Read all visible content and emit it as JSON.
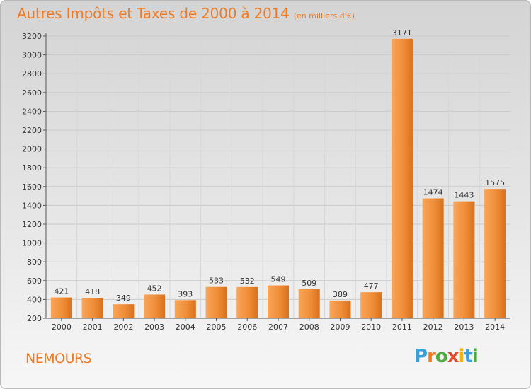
{
  "chart_data": {
    "type": "bar",
    "title": "Autres Impôts et Taxes de 2000 à 2014",
    "subtitle": "(en milliers d'€)",
    "categories": [
      "2000",
      "2001",
      "2002",
      "2003",
      "2004",
      "2005",
      "2006",
      "2007",
      "2008",
      "2009",
      "2010",
      "2011",
      "2012",
      "2013",
      "2014"
    ],
    "values": [
      421,
      418,
      349,
      452,
      393,
      533,
      532,
      549,
      509,
      389,
      477,
      3171,
      1474,
      1443,
      1575
    ],
    "ylim": [
      200,
      3200
    ],
    "yticks": [
      200,
      400,
      600,
      800,
      1000,
      1200,
      1400,
      1600,
      1800,
      2000,
      2200,
      2400,
      2600,
      2800,
      3000,
      3200
    ],
    "grid": true,
    "bar_color": "#f07a22"
  },
  "footer": {
    "commune": "NEMOURS",
    "logo": "Proxiti"
  }
}
